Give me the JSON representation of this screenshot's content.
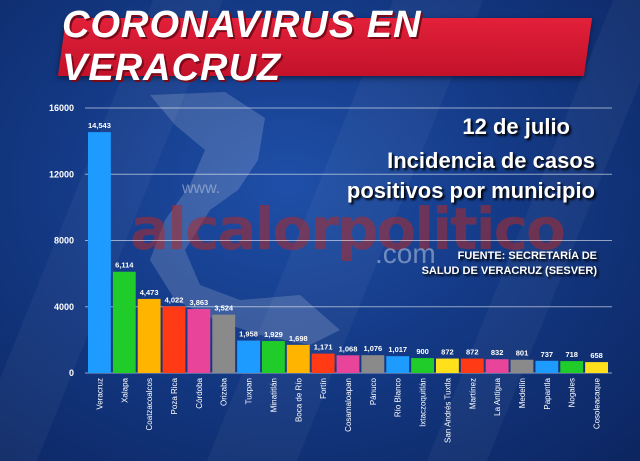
{
  "banner_title": "CORONAVIRUS EN VERACRUZ",
  "date_text": "12 de julio",
  "subtitle_line1": "Incidencia de casos",
  "subtitle_line2": "positivos por municipio",
  "source_line1": "FUENTE: SECRETARÍA DE",
  "source_line2": "SALUD DE VERACRUZ (SESVER)",
  "watermark": {
    "www": "www.",
    "main": "alcalorpolitico",
    "tld": ".com"
  },
  "colors": {
    "banner": "#d8172f",
    "background": "#143a86"
  },
  "chart_data": {
    "type": "bar",
    "title": "",
    "xlabel": "",
    "ylabel": "",
    "ylim": [
      0,
      16000
    ],
    "yticks": [
      "0",
      "4000",
      "8000",
      "12000",
      "16000"
    ],
    "grid": true,
    "categories": [
      "Veracruz",
      "Xalapa",
      "Coatzacoalcos",
      "Poza Rica",
      "Córdoba",
      "Orizaba",
      "Tuxpan",
      "Minatitlán",
      "Boca de Río",
      "Fortín",
      "Cosamaloapan",
      "Pánuco",
      "Río Blanco",
      "Ixtaczoquitlán",
      "San Andrés Tuxtla",
      "Martínez",
      "La Antigua",
      "Medellín",
      "Papantla",
      "Nogales",
      "Cosoleacaque"
    ],
    "values": [
      14543,
      6114,
      4473,
      4022,
      3863,
      3524,
      1958,
      1929,
      1698,
      1171,
      1068,
      1076,
      1017,
      900,
      872,
      872,
      832,
      801,
      737,
      718,
      658
    ],
    "labels": [
      "14,543",
      "6,114",
      "4,473",
      "4,022",
      "3,863",
      "3,524",
      "1,958",
      "1,929",
      "1,698",
      "1,171",
      "1,068",
      "1,076",
      "1,017",
      "900",
      "872",
      "872",
      "832",
      "801",
      "737",
      "718",
      "658"
    ],
    "bar_colors": [
      "#1e9bff",
      "#1fcc2a",
      "#ffb400",
      "#ff3a14",
      "#e8459a",
      "#8a8a8a",
      "#1e9bff",
      "#1fcc2a",
      "#ffb400",
      "#ff3a14",
      "#e8459a",
      "#8a8a8a",
      "#1e9bff",
      "#1fcc2a",
      "#ffe01a",
      "#ff3a14",
      "#e8459a",
      "#8a8a8a",
      "#1e9bff",
      "#1fcc2a",
      "#ffe01a"
    ]
  }
}
